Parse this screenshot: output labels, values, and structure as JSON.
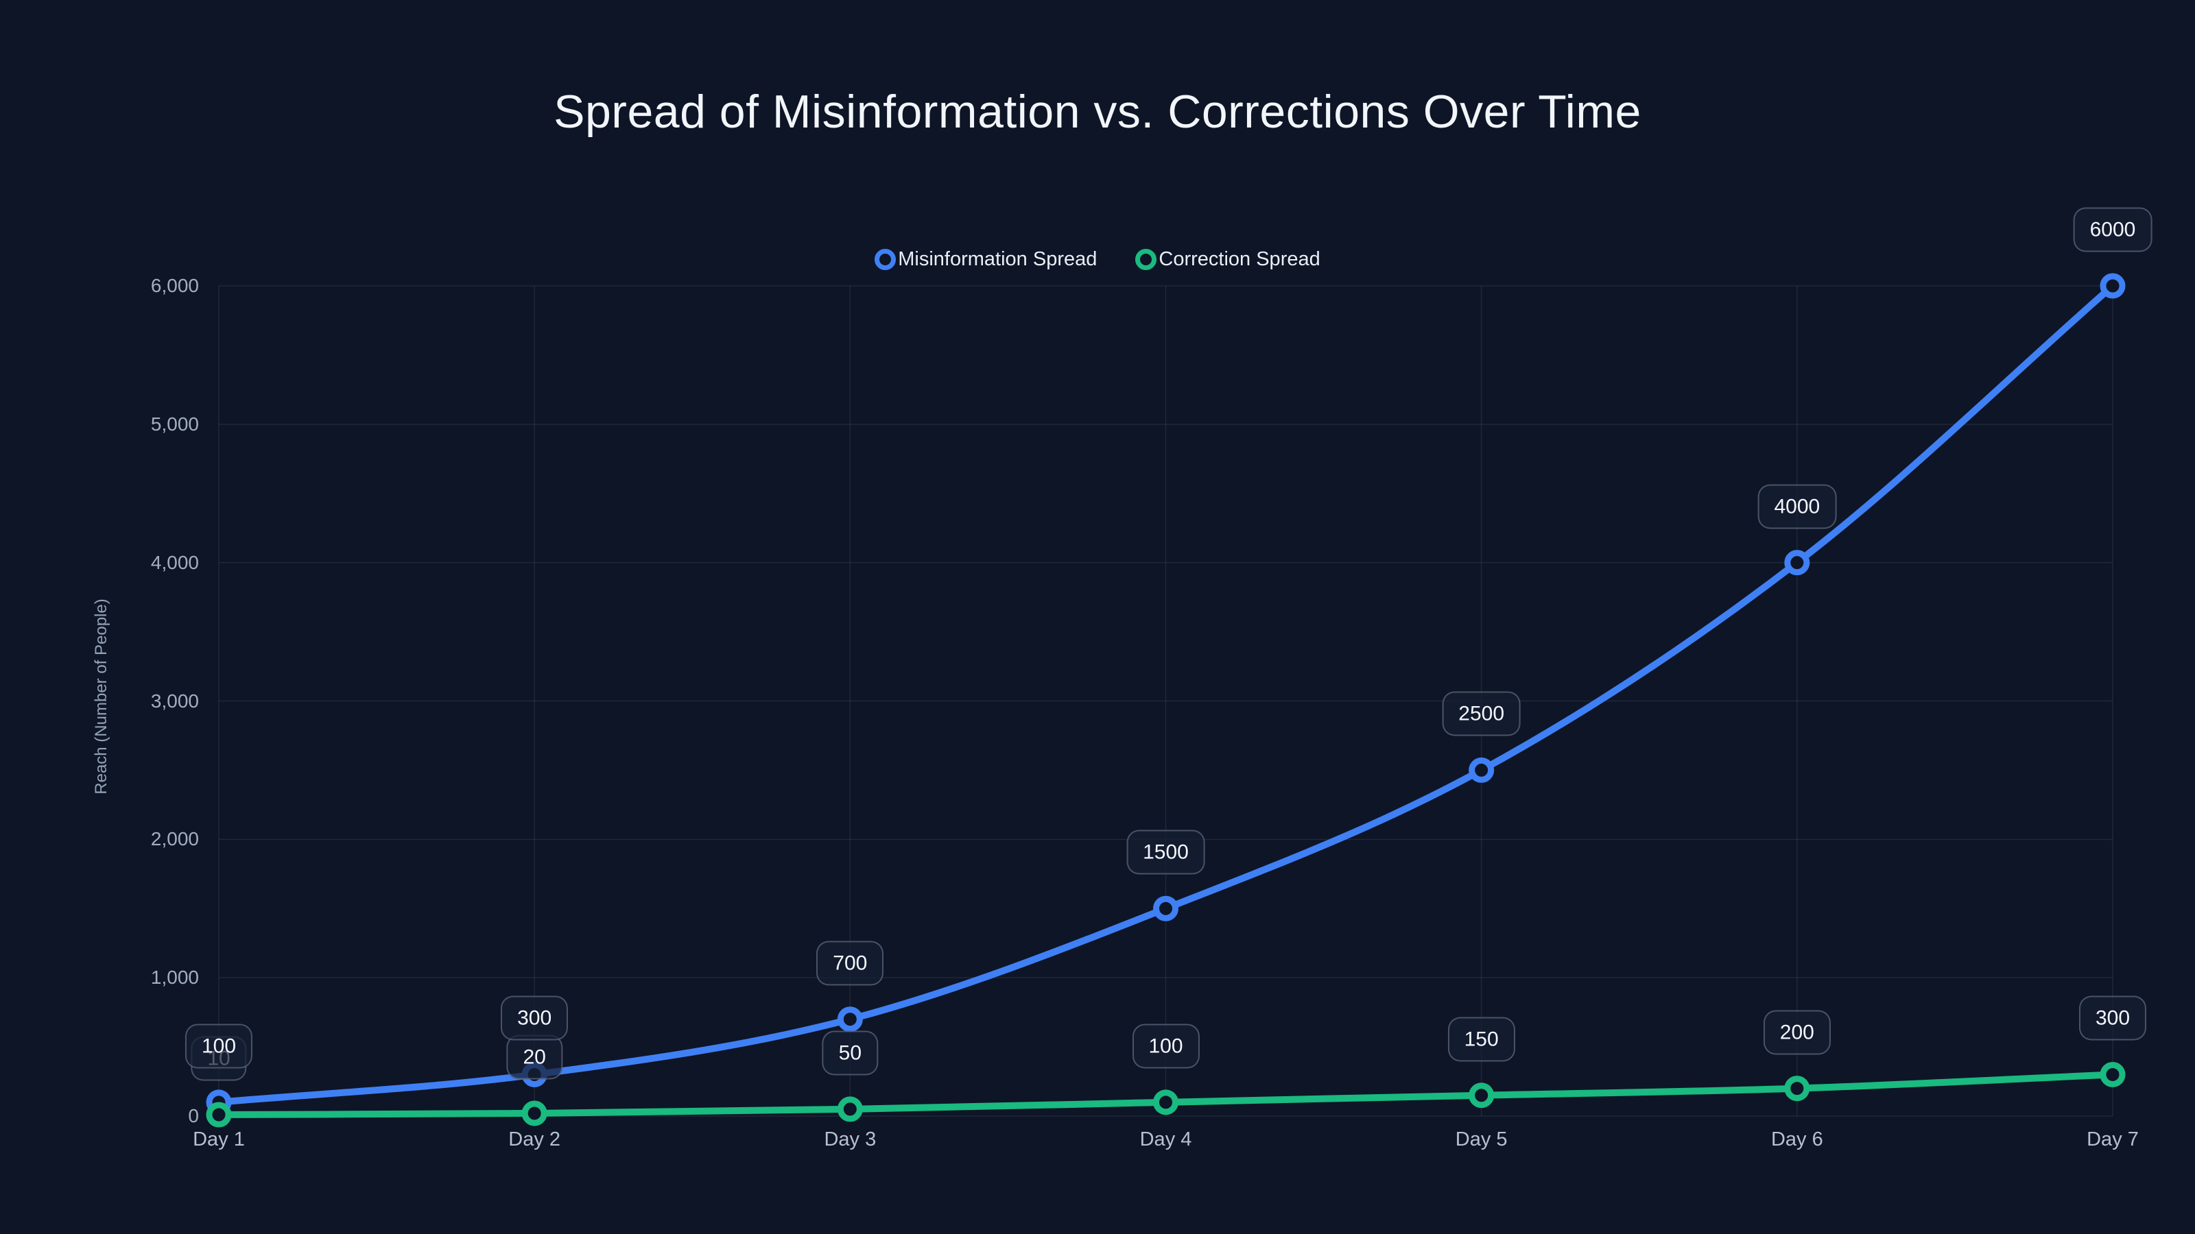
{
  "colors": {
    "background": "#0e1526",
    "grid": "rgba(148,163,184,0.13)",
    "misinformation_blue": "#4080f5",
    "correction_green": "#1aba80",
    "title_text": "#f2f6fa",
    "tick_text": "#a3afc0"
  },
  "chart_data": {
    "type": "line",
    "title": "Spread of Misinformation vs. Corrections Over Time",
    "xlabel": "",
    "ylabel": "Reach (Number of People)",
    "categories": [
      "Day 1",
      "Day 2",
      "Day 3",
      "Day 4",
      "Day 5",
      "Day 6",
      "Day 7"
    ],
    "series": [
      {
        "name": "Misinformation Spread",
        "color": "#4080f5",
        "values": [
          100,
          300,
          700,
          1500,
          2500,
          4000,
          6000
        ],
        "point_labels": [
          "100",
          "300",
          "700",
          "1500",
          "2500",
          "4000",
          "6000"
        ]
      },
      {
        "name": "Correction Spread",
        "color": "#1aba80",
        "values": [
          10,
          20,
          50,
          100,
          150,
          200,
          300
        ],
        "point_labels": [
          "10",
          "20",
          "50",
          "100",
          "150",
          "200",
          "300"
        ]
      }
    ],
    "ylim": [
      0,
      6000
    ],
    "yticks": [
      "0",
      "1,000",
      "2,000",
      "3,000",
      "4,000",
      "5,000",
      "6,000"
    ],
    "grid": true,
    "legend_position": "top-center",
    "curve": "monotone"
  }
}
